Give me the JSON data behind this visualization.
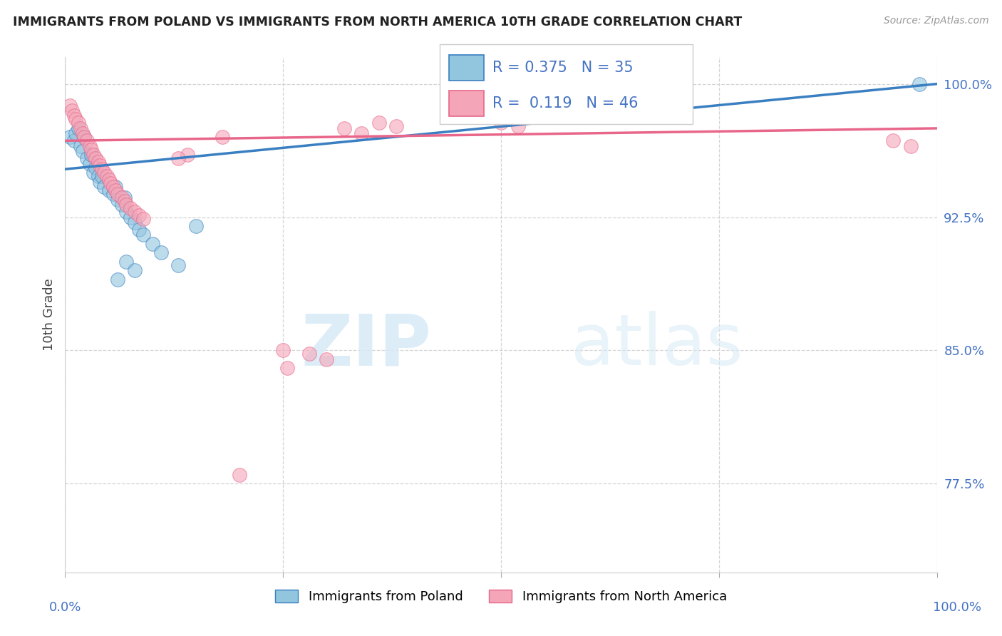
{
  "title": "IMMIGRANTS FROM POLAND VS IMMIGRANTS FROM NORTH AMERICA 10TH GRADE CORRELATION CHART",
  "source": "Source: ZipAtlas.com",
  "ylabel": "10th Grade",
  "xlim": [
    0.0,
    1.0
  ],
  "ylim": [
    0.725,
    1.015
  ],
  "yticks": [
    0.775,
    0.85,
    0.925,
    1.0
  ],
  "ytick_labels": [
    "77.5%",
    "85.0%",
    "92.5%",
    "100.0%"
  ],
  "blue_R": 0.375,
  "blue_N": 35,
  "pink_R": 0.119,
  "pink_N": 46,
  "blue_color": "#92c5de",
  "pink_color": "#f4a6b8",
  "blue_line_color": "#3a7fc1",
  "pink_line_color": "#e8668a",
  "blue_scatter": [
    [
      0.005,
      0.97
    ],
    [
      0.01,
      0.968
    ],
    [
      0.012,
      0.972
    ],
    [
      0.015,
      0.975
    ],
    [
      0.018,
      0.965
    ],
    [
      0.02,
      0.962
    ],
    [
      0.022,
      0.97
    ],
    [
      0.025,
      0.958
    ],
    [
      0.028,
      0.955
    ],
    [
      0.03,
      0.96
    ],
    [
      0.032,
      0.95
    ],
    [
      0.035,
      0.953
    ],
    [
      0.038,
      0.948
    ],
    [
      0.04,
      0.945
    ],
    [
      0.042,
      0.948
    ],
    [
      0.045,
      0.942
    ],
    [
      0.05,
      0.94
    ],
    [
      0.055,
      0.938
    ],
    [
      0.058,
      0.942
    ],
    [
      0.06,
      0.935
    ],
    [
      0.065,
      0.932
    ],
    [
      0.068,
      0.936
    ],
    [
      0.07,
      0.928
    ],
    [
      0.075,
      0.925
    ],
    [
      0.08,
      0.922
    ],
    [
      0.085,
      0.918
    ],
    [
      0.09,
      0.915
    ],
    [
      0.1,
      0.91
    ],
    [
      0.11,
      0.905
    ],
    [
      0.13,
      0.898
    ],
    [
      0.15,
      0.92
    ],
    [
      0.07,
      0.9
    ],
    [
      0.08,
      0.895
    ],
    [
      0.06,
      0.89
    ],
    [
      0.98,
      1.0
    ]
  ],
  "pink_scatter": [
    [
      0.005,
      0.988
    ],
    [
      0.008,
      0.985
    ],
    [
      0.01,
      0.982
    ],
    [
      0.012,
      0.98
    ],
    [
      0.015,
      0.978
    ],
    [
      0.018,
      0.975
    ],
    [
      0.02,
      0.972
    ],
    [
      0.022,
      0.97
    ],
    [
      0.025,
      0.968
    ],
    [
      0.028,
      0.965
    ],
    [
      0.03,
      0.963
    ],
    [
      0.032,
      0.96
    ],
    [
      0.035,
      0.958
    ],
    [
      0.038,
      0.956
    ],
    [
      0.04,
      0.954
    ],
    [
      0.042,
      0.952
    ],
    [
      0.045,
      0.95
    ],
    [
      0.048,
      0.948
    ],
    [
      0.05,
      0.946
    ],
    [
      0.052,
      0.944
    ],
    [
      0.055,
      0.942
    ],
    [
      0.058,
      0.94
    ],
    [
      0.06,
      0.938
    ],
    [
      0.065,
      0.936
    ],
    [
      0.068,
      0.934
    ],
    [
      0.07,
      0.932
    ],
    [
      0.075,
      0.93
    ],
    [
      0.08,
      0.928
    ],
    [
      0.085,
      0.926
    ],
    [
      0.09,
      0.924
    ],
    [
      0.25,
      0.85
    ],
    [
      0.255,
      0.84
    ],
    [
      0.2,
      0.78
    ],
    [
      0.28,
      0.848
    ],
    [
      0.3,
      0.845
    ],
    [
      0.32,
      0.975
    ],
    [
      0.34,
      0.972
    ],
    [
      0.36,
      0.978
    ],
    [
      0.38,
      0.976
    ],
    [
      0.5,
      0.978
    ],
    [
      0.52,
      0.976
    ],
    [
      0.18,
      0.97
    ],
    [
      0.14,
      0.96
    ],
    [
      0.13,
      0.958
    ],
    [
      0.95,
      0.968
    ],
    [
      0.97,
      0.965
    ]
  ],
  "legend_blue_label": "Immigrants from Poland",
  "legend_pink_label": "Immigrants from North America",
  "watermark_zip": "ZIP",
  "watermark_atlas": "atlas",
  "background_color": "#ffffff",
  "grid_color": "#d0d0d0"
}
